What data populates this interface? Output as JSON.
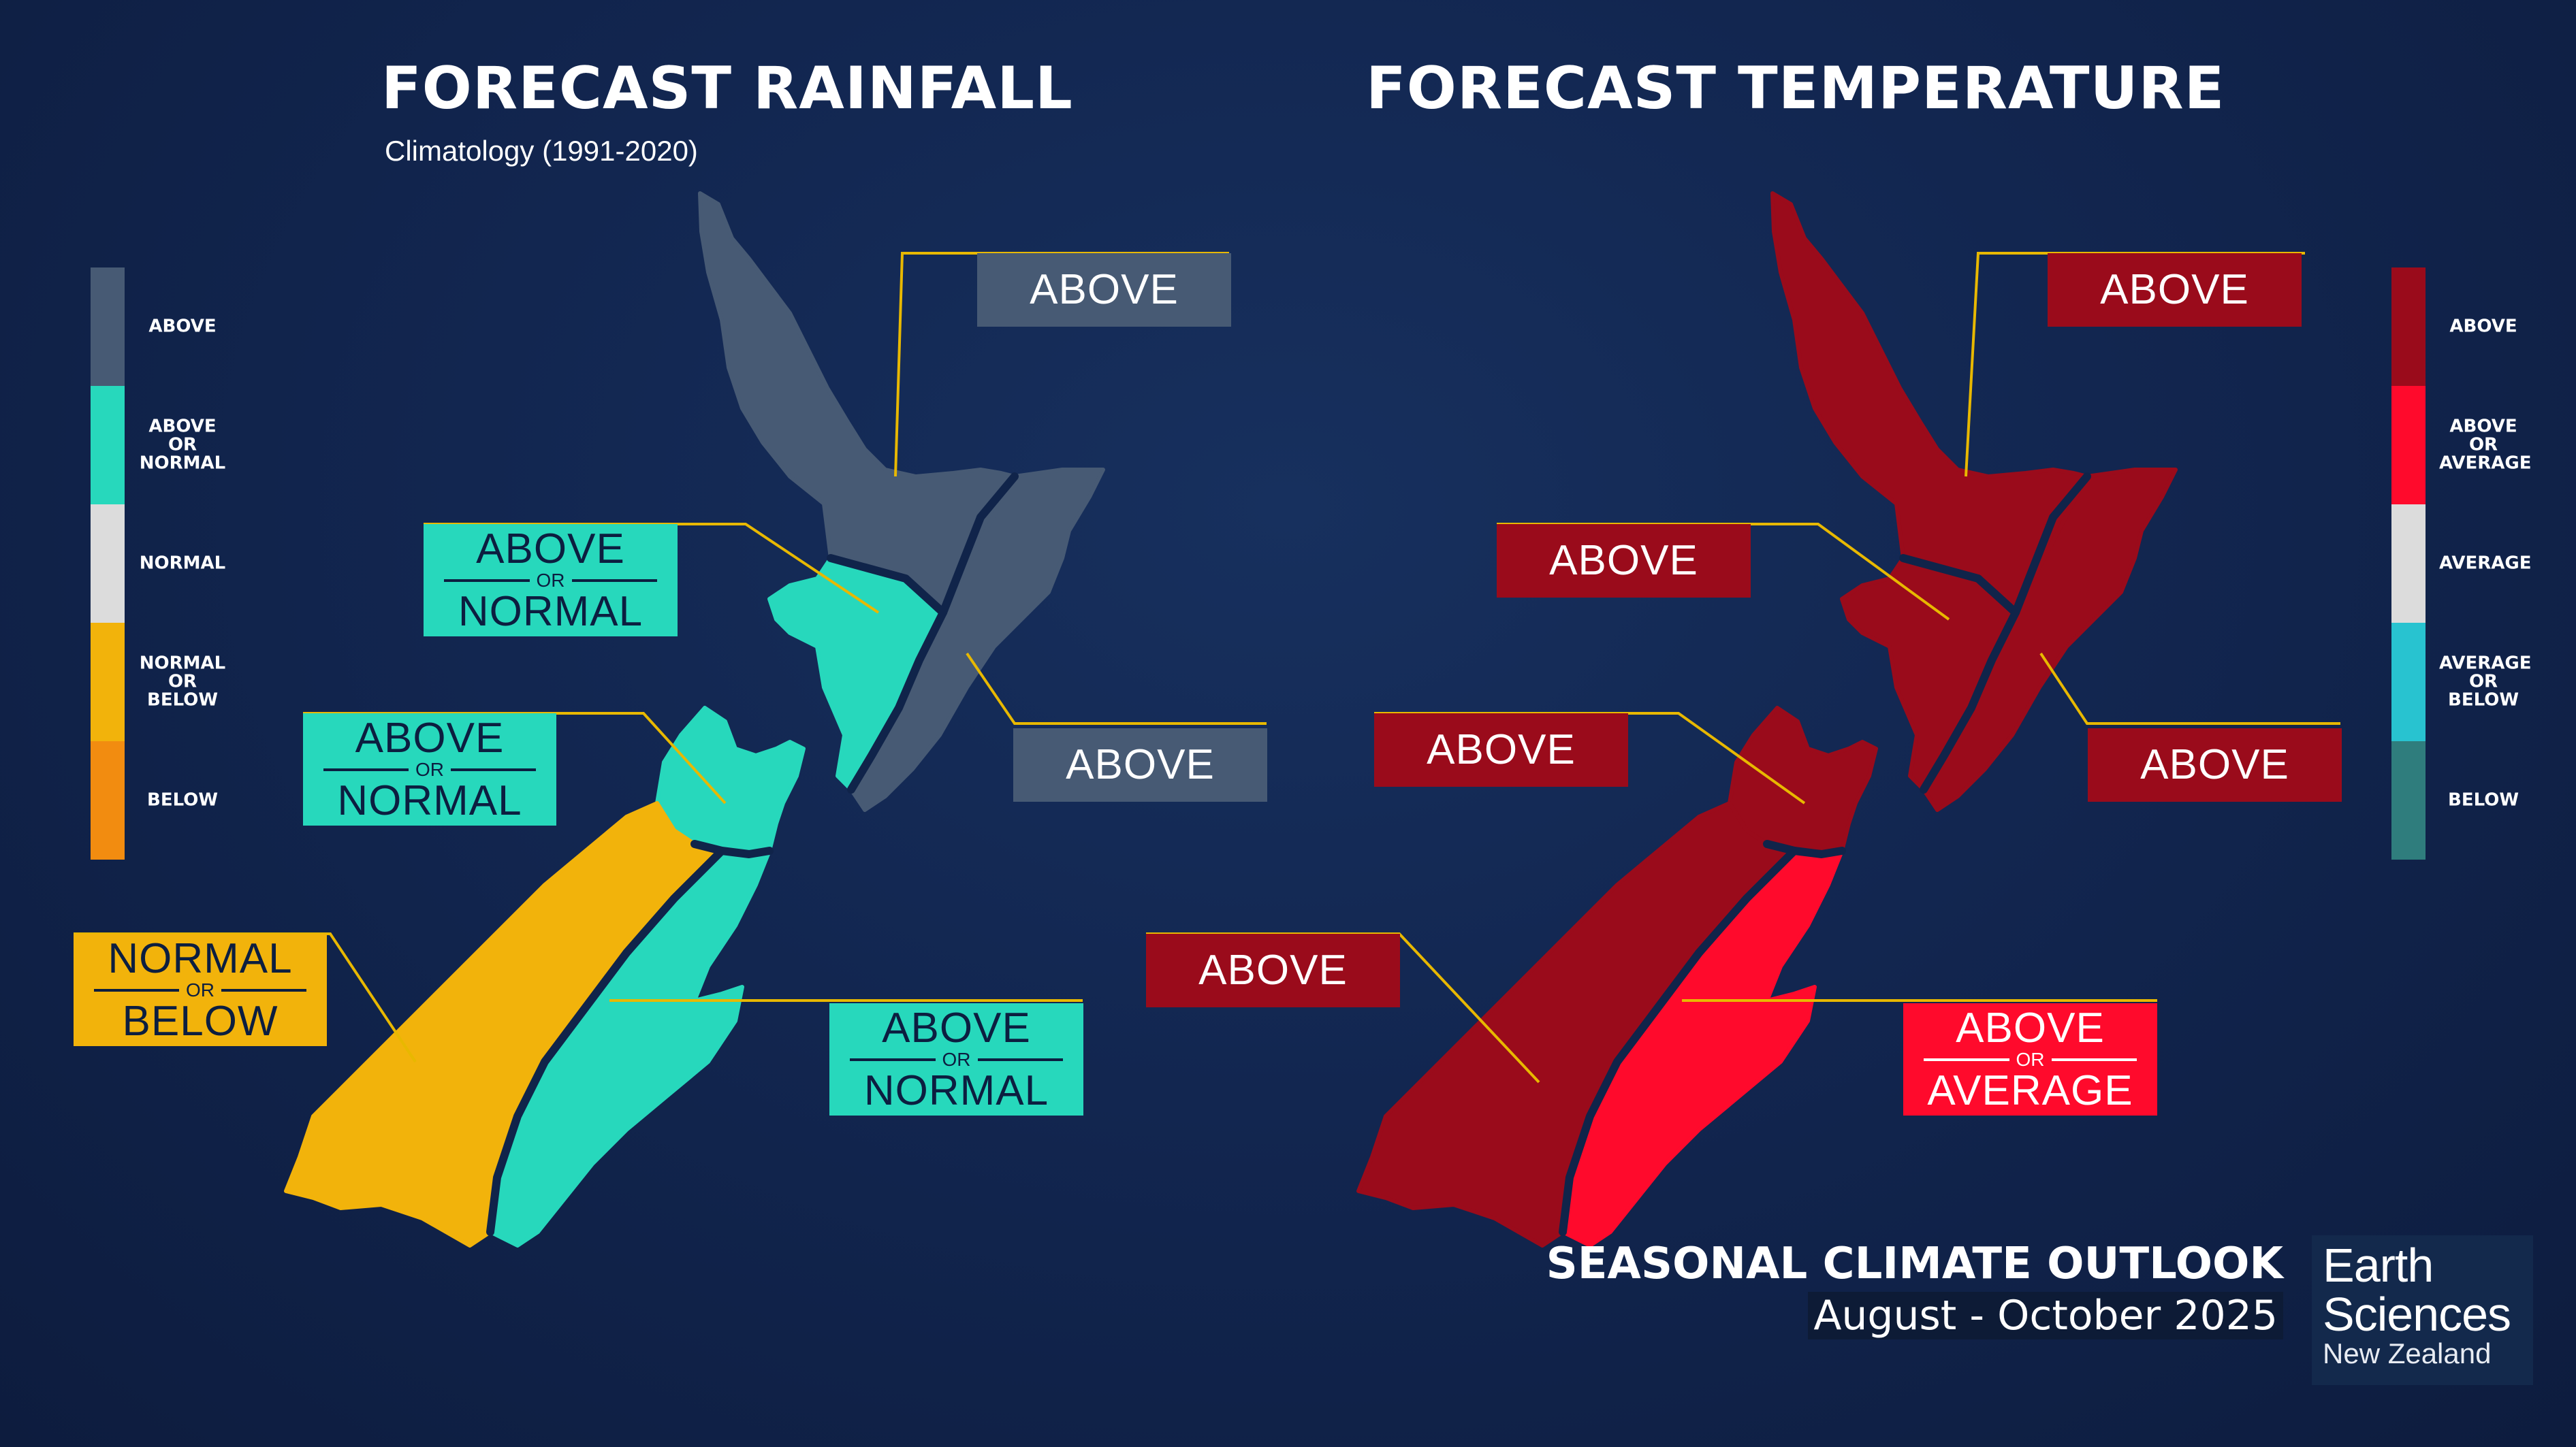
{
  "rainfall": {
    "title": "FORECAST RAINFALL",
    "subtitle": "Climatology (1991-2020)",
    "legend": [
      {
        "label": "ABOVE",
        "color": "#475a74"
      },
      {
        "label": "ABOVE\nOR\nNORMAL",
        "color": "#27d8bc"
      },
      {
        "label": "NORMAL",
        "color": "#dcdcdc"
      },
      {
        "label": "NORMAL\nOR\nBELOW",
        "color": "#f2b30b"
      },
      {
        "label": "BELOW",
        "color": "#f28c10"
      }
    ],
    "regions": [
      {
        "region": "north-north-island",
        "category": "ABOVE",
        "color": "#475a74",
        "label": {
          "main": "ABOVE"
        }
      },
      {
        "region": "west-north-island",
        "category": "ABOVE OR NORMAL",
        "color": "#27d8bc",
        "label": {
          "top": "ABOVE",
          "or": "OR",
          "bottom": "NORMAL"
        }
      },
      {
        "region": "east-north-island",
        "category": "ABOVE",
        "color": "#475a74",
        "label": {
          "main": "ABOVE"
        }
      },
      {
        "region": "north-south-island",
        "category": "ABOVE OR NORMAL",
        "color": "#27d8bc",
        "label": {
          "top": "ABOVE",
          "or": "OR",
          "bottom": "NORMAL"
        }
      },
      {
        "region": "west-south-island",
        "category": "NORMAL OR BELOW",
        "color": "#f2b30b",
        "label": {
          "top": "NORMAL",
          "or": "OR",
          "bottom": "BELOW"
        }
      },
      {
        "region": "east-south-island",
        "category": "ABOVE OR NORMAL",
        "color": "#27d8bc",
        "label": {
          "top": "ABOVE",
          "or": "OR",
          "bottom": "NORMAL"
        }
      }
    ]
  },
  "temperature": {
    "title": "FORECAST TEMPERATURE",
    "legend": [
      {
        "label": "ABOVE",
        "color": "#9a0b1b"
      },
      {
        "label": "ABOVE\nOR\nAVERAGE",
        "color": "#ff0a2c"
      },
      {
        "label": "AVERAGE",
        "color": "#dcdcdc"
      },
      {
        "label": "AVERAGE\nOR\nBELOW",
        "color": "#28c3d0"
      },
      {
        "label": "BELOW",
        "color": "#2f7d7d"
      }
    ],
    "regions": [
      {
        "region": "north-north-island",
        "category": "ABOVE",
        "color": "#9a0b1b",
        "label": {
          "main": "ABOVE"
        }
      },
      {
        "region": "west-north-island",
        "category": "ABOVE",
        "color": "#9a0b1b",
        "label": {
          "main": "ABOVE"
        }
      },
      {
        "region": "east-north-island",
        "category": "ABOVE",
        "color": "#9a0b1b",
        "label": {
          "main": "ABOVE"
        }
      },
      {
        "region": "north-south-island",
        "category": "ABOVE",
        "color": "#9a0b1b",
        "label": {
          "main": "ABOVE"
        }
      },
      {
        "region": "west-south-island",
        "category": "ABOVE",
        "color": "#9a0b1b",
        "label": {
          "main": "ABOVE"
        }
      },
      {
        "region": "east-south-island",
        "category": "ABOVE OR AVERAGE",
        "color": "#ff0a2c",
        "label": {
          "top": "ABOVE",
          "or": "OR",
          "bottom": "AVERAGE"
        }
      }
    ]
  },
  "footer": {
    "title": "SEASONAL CLIMATE OUTLOOK",
    "period": "August - October 2025"
  },
  "logo": {
    "line1": "Earth",
    "line2": "Sciences",
    "line3": "New Zealand"
  },
  "colors": {
    "background": "#122650",
    "leader_line": "#e8b800",
    "region_boundary": "#10244a"
  }
}
